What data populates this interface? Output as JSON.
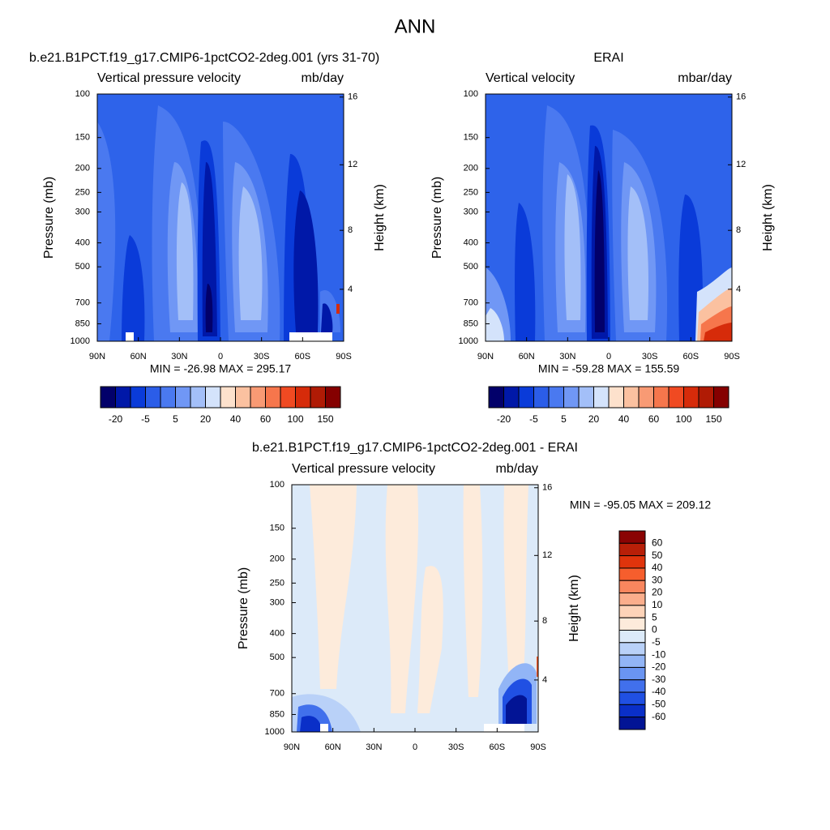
{
  "title": "ANN",
  "panels": [
    {
      "case": "b.e21.B1PCT.f19_g17.CMIP6-1pctCO2-2deg.001 (yrs 31-70)",
      "left_label": "Vertical pressure velocity",
      "right_label": "mb/day",
      "y_label": "Pressure (mb)",
      "y2_label": "Height (km)",
      "ylim": [
        100,
        1000
      ],
      "ylog": true,
      "yticks": [
        100,
        150,
        200,
        250,
        300,
        400,
        500,
        700,
        850,
        1000
      ],
      "y2ticks": [
        16,
        12,
        8,
        4
      ],
      "xticks": [
        "90N",
        "60N",
        "30N",
        "0",
        "30S",
        "60S",
        "90S"
      ],
      "stats": "MIN = -26.98  MAX = 295.17",
      "colorbar": {
        "orientation": "horizontal",
        "levels": [
          -20,
          null,
          -5,
          null,
          5,
          null,
          20,
          null,
          40,
          null,
          60,
          null,
          100,
          null,
          150
        ],
        "colors": [
          "#02006a",
          "#0018a8",
          "#0a3bd9",
          "#2b5de8",
          "#4a79f0",
          "#7097f5",
          "#a3bff8",
          "#d4e3fb",
          "#fde1cc",
          "#fbc1a0",
          "#f89a74",
          "#f6764c",
          "#f04a22",
          "#d62b0a",
          "#b01b05",
          "#850000"
        ]
      }
    },
    {
      "case": "ERAI",
      "left_label": "Vertical velocity",
      "right_label": "mbar/day",
      "y_label": "Pressure (mb)",
      "y2_label": "Height (km)",
      "ylim": [
        100,
        1000
      ],
      "ylog": true,
      "yticks": [
        100,
        150,
        200,
        250,
        300,
        400,
        500,
        700,
        850,
        1000
      ],
      "y2ticks": [
        16,
        12,
        8,
        4
      ],
      "xticks": [
        "90N",
        "60N",
        "30N",
        "0",
        "30S",
        "60S",
        "90S"
      ],
      "stats": "MIN = -59.28  MAX = 155.59",
      "colorbar": {
        "orientation": "horizontal",
        "levels": [
          -20,
          null,
          -5,
          null,
          5,
          null,
          20,
          null,
          40,
          null,
          60,
          null,
          100,
          null,
          150
        ],
        "colors": [
          "#02006a",
          "#0018a8",
          "#0a3bd9",
          "#2b5de8",
          "#4a79f0",
          "#7097f5",
          "#a3bff8",
          "#d4e3fb",
          "#fde1cc",
          "#fbc1a0",
          "#f89a74",
          "#f6764c",
          "#f04a22",
          "#d62b0a",
          "#b01b05",
          "#850000"
        ]
      }
    },
    {
      "case": "b.e21.B1PCT.f19_g17.CMIP6-1pctCO2-2deg.001 - ERAI",
      "left_label": "Vertical pressure velocity",
      "right_label": "mb/day",
      "y_label": "Pressure (mb)",
      "y2_label": "Height (km)",
      "ylim": [
        100,
        1000
      ],
      "ylog": true,
      "yticks": [
        100,
        150,
        200,
        250,
        300,
        400,
        500,
        700,
        850,
        1000
      ],
      "y2ticks": [
        16,
        12,
        8,
        4
      ],
      "xticks": [
        "90N",
        "60N",
        "30N",
        "0",
        "30S",
        "60S",
        "90S"
      ],
      "stats": "MIN = -95.05  MAX = 209.12",
      "colorbar": {
        "orientation": "vertical",
        "levels": [
          60,
          50,
          40,
          30,
          20,
          10,
          5,
          0,
          -5,
          -10,
          -20,
          -30,
          -40,
          -50,
          -60
        ],
        "colors": [
          "#8a0303",
          "#b81f08",
          "#e0340c",
          "#f65e2d",
          "#f9865e",
          "#fbae8c",
          "#fdd3b8",
          "#fdebdb",
          "#dceaf9",
          "#b9d1f8",
          "#92b5f6",
          "#6a95f2",
          "#4170ec",
          "#2050e3",
          "#0a2fc8",
          "#021495"
        ]
      }
    }
  ]
}
